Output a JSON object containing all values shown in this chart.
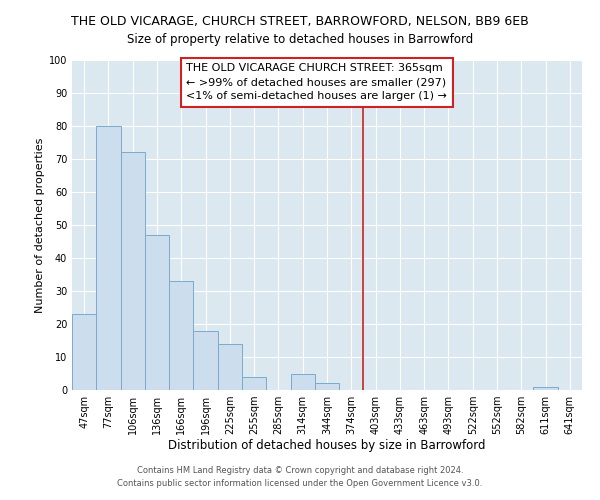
{
  "title": "THE OLD VICARAGE, CHURCH STREET, BARROWFORD, NELSON, BB9 6EB",
  "subtitle": "Size of property relative to detached houses in Barrowford",
  "xlabel": "Distribution of detached houses by size in Barrowford",
  "ylabel": "Number of detached properties",
  "bar_labels": [
    "47sqm",
    "77sqm",
    "106sqm",
    "136sqm",
    "166sqm",
    "196sqm",
    "225sqm",
    "255sqm",
    "285sqm",
    "314sqm",
    "344sqm",
    "374sqm",
    "403sqm",
    "433sqm",
    "463sqm",
    "493sqm",
    "522sqm",
    "552sqm",
    "582sqm",
    "611sqm",
    "641sqm"
  ],
  "bar_values": [
    23,
    80,
    72,
    47,
    33,
    18,
    14,
    4,
    0,
    5,
    2,
    0,
    0,
    0,
    0,
    0,
    0,
    0,
    0,
    1,
    0
  ],
  "bar_color": "#ccdded",
  "bar_edge_color": "#7aabcc",
  "ylim": [
    0,
    100
  ],
  "yticks": [
    0,
    10,
    20,
    30,
    40,
    50,
    60,
    70,
    80,
    90,
    100
  ],
  "vline_x_idx": 11.5,
  "vline_color": "#cc2222",
  "annotation_text": "THE OLD VICARAGE CHURCH STREET: 365sqm\n← >99% of detached houses are smaller (297)\n<1% of semi-detached houses are larger (1) →",
  "annotation_box_facecolor": "#ffffff",
  "annotation_box_edgecolor": "#cc2222",
  "footer1": "Contains HM Land Registry data © Crown copyright and database right 2024.",
  "footer2": "Contains public sector information licensed under the Open Government Licence v3.0.",
  "fig_bg_color": "#ffffff",
  "plot_bg_color": "#dce8f0",
  "title_fontsize": 9,
  "xlabel_fontsize": 8.5,
  "ylabel_fontsize": 8,
  "tick_fontsize": 7,
  "annotation_fontsize": 8,
  "footer_fontsize": 6
}
